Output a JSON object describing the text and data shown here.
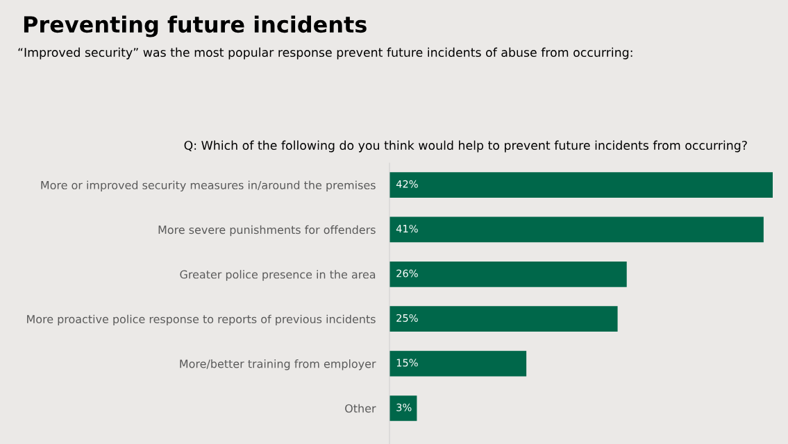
{
  "chart_data": {
    "type": "bar",
    "orientation": "horizontal",
    "title": "Preventing future incidents",
    "subtitle": "“Improved security” was the most popular response prevent future incidents of abuse from occurring:",
    "annotations": [
      "Q: Which of the following do you think would help to prevent future incidents from occurring?"
    ],
    "categories": [
      "More or improved security measures in/around the premises",
      "More severe punishments for offenders",
      "Greater police presence in the area",
      "More proactive police response to reports of previous incidents",
      "More/better training from employer",
      "Other"
    ],
    "values": [
      42,
      41,
      26,
      25,
      15,
      3
    ],
    "value_labels": [
      "42%",
      "41%",
      "26%",
      "25%",
      "15%",
      "3%"
    ],
    "color": "#00674a",
    "grid": false,
    "legend": false
  }
}
